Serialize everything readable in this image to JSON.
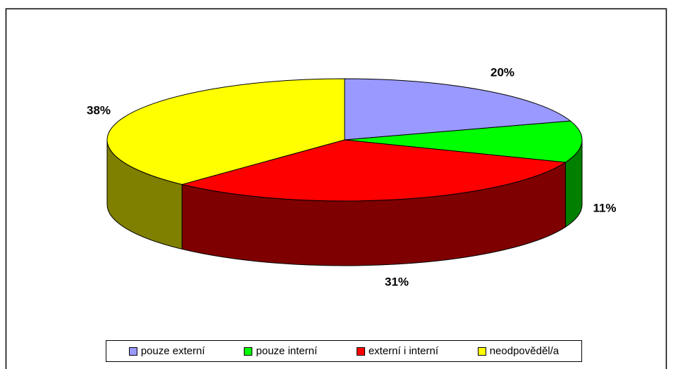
{
  "chart_data": {
    "type": "pie3d",
    "categories": [
      "pouze externí",
      "pouze interní",
      "externí i interní",
      "neodpověděl/a"
    ],
    "values": [
      20,
      11,
      31,
      38
    ],
    "value_labels": [
      "20%",
      "11%",
      "31%",
      "38%"
    ],
    "colors": [
      "#9999ff",
      "#00ff00",
      "#ff0000",
      "#ffff00"
    ],
    "legend": "bottom"
  }
}
